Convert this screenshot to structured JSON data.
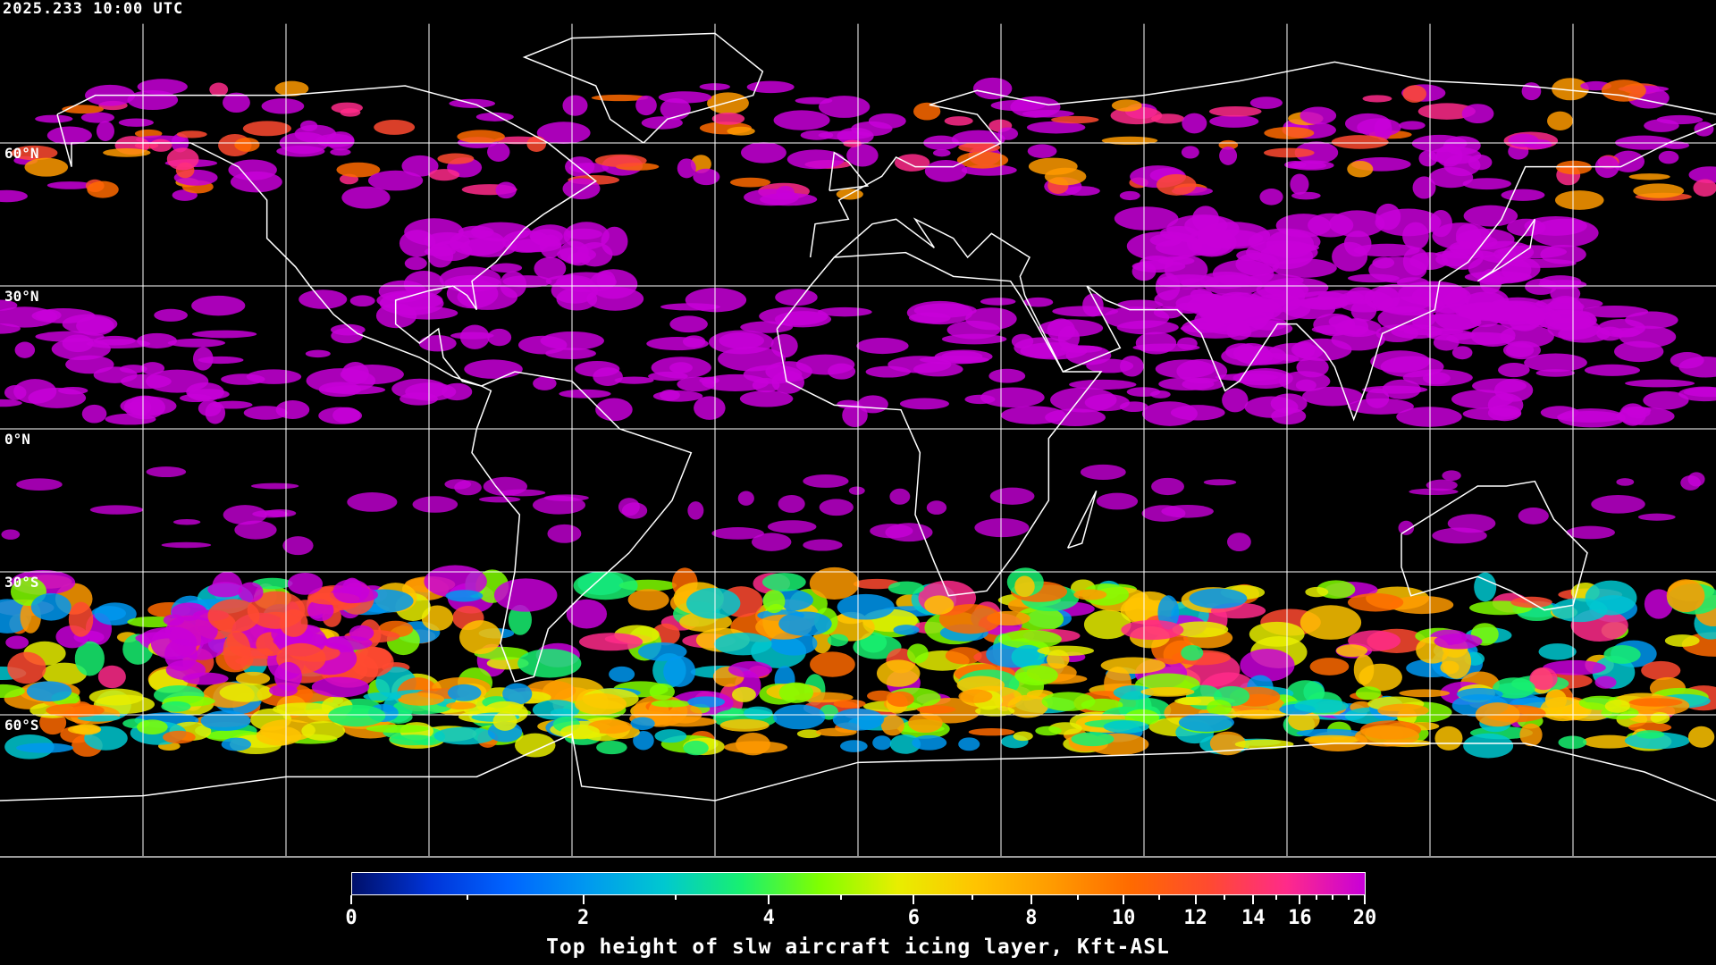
{
  "timestamp": "2025.233 10:00 UTC",
  "latitude_labels": [
    "60°N",
    "30°N",
    "0°N",
    "30°S",
    "60°S"
  ],
  "latitude_values": [
    60,
    30,
    0,
    -30,
    -60
  ],
  "gridline_longitudes": [
    -150,
    -120,
    -90,
    -60,
    -30,
    0,
    30,
    60,
    90,
    120,
    150
  ],
  "colorbar": {
    "title": "Top height of slw aircraft icing layer, Kft-ASL",
    "range": [
      0,
      20
    ],
    "major_ticks": [
      "0",
      "2",
      "4",
      "6",
      "8",
      "10",
      "12",
      "14",
      "16",
      "20"
    ],
    "minor_ticks": [
      1,
      3,
      5,
      7,
      9,
      11,
      13,
      15,
      17,
      18,
      19
    ],
    "colors": [
      "#00106a",
      "#0034d8",
      "#0064ff",
      "#0098f0",
      "#00c8d0",
      "#18f070",
      "#80ff00",
      "#e8ee00",
      "#ffc400",
      "#ff9a00",
      "#ff6a00",
      "#ff4a30",
      "#ff2a8a",
      "#c800d8"
    ]
  },
  "colors": {
    "background": "#000000",
    "coastline": "#ffffff",
    "grid": "#ffffff",
    "tropical_cloud": "#d010e0"
  }
}
